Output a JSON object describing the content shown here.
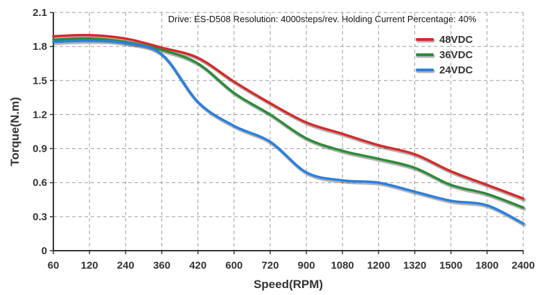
{
  "chart_data": {
    "type": "line",
    "subtitle": "Drive: ES-D508 Resolution: 4000steps/rev. Holding Current Percentage: 40%",
    "xlabel": "Speed(RPM)",
    "ylabel": "Torque(N.m)",
    "x_categories": [
      "60",
      "120",
      "240",
      "360",
      "420",
      "600",
      "720",
      "900",
      "1080",
      "1200",
      "1320",
      "1500",
      "1800",
      "2400"
    ],
    "yticks": [
      "0",
      "0.3",
      "0.6",
      "0.9",
      "1.2",
      "1.5",
      "1.8",
      "2.1"
    ],
    "ylim": [
      0,
      2.1
    ],
    "grid": true,
    "legend_position": "top-right",
    "series": [
      {
        "name": "48VDC",
        "color": "#d42a2a",
        "values": [
          1.89,
          1.9,
          1.87,
          1.79,
          1.7,
          1.49,
          1.3,
          1.13,
          1.03,
          0.93,
          0.85,
          0.7,
          0.58,
          0.46
        ]
      },
      {
        "name": "36VDC",
        "color": "#2d8a3a",
        "values": [
          1.86,
          1.87,
          1.84,
          1.77,
          1.65,
          1.39,
          1.2,
          0.99,
          0.88,
          0.81,
          0.73,
          0.58,
          0.5,
          0.38
        ]
      },
      {
        "name": "24VDC",
        "color": "#2a7fe0",
        "values": [
          1.84,
          1.85,
          1.83,
          1.73,
          1.31,
          1.1,
          0.96,
          0.69,
          0.62,
          0.6,
          0.52,
          0.44,
          0.4,
          0.24
        ]
      }
    ]
  }
}
